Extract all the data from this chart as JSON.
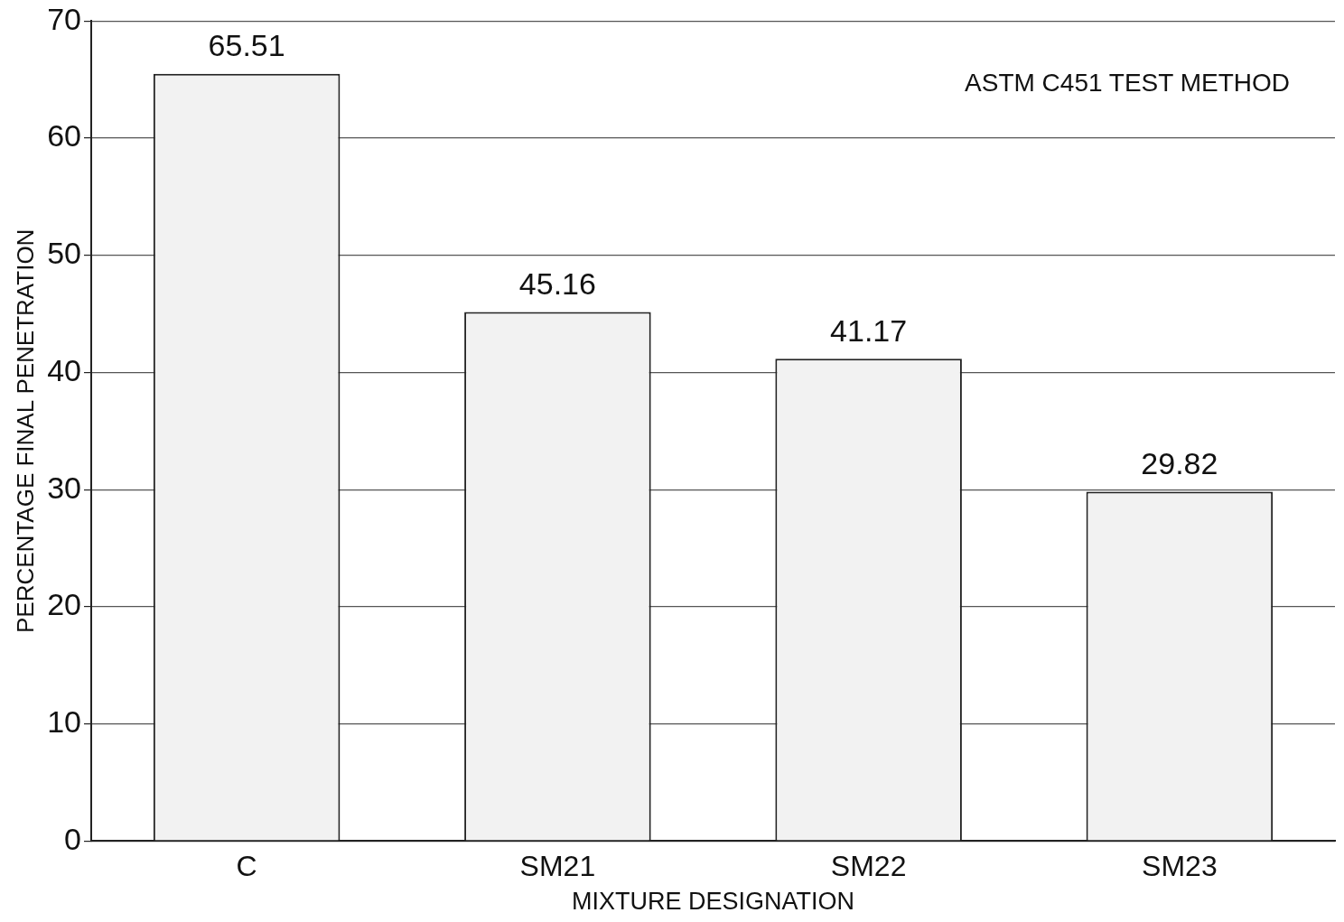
{
  "chart_data": {
    "type": "bar",
    "xlabel": "MIXTURE DESIGNATION",
    "ylabel": "PERCENTAGE FINAL PENETRATION",
    "categories": [
      "C",
      "SM21",
      "SM22",
      "SM23"
    ],
    "values": [
      65.51,
      45.16,
      41.17,
      29.82
    ],
    "color": "#f2f2f2",
    "ylim": [
      0,
      70
    ],
    "yticks": [
      0,
      10,
      20,
      30,
      40,
      50,
      60,
      70
    ],
    "grid": "y",
    "data_labels": true,
    "annotations": [
      "ASTM C451 TEST METHOD"
    ]
  }
}
